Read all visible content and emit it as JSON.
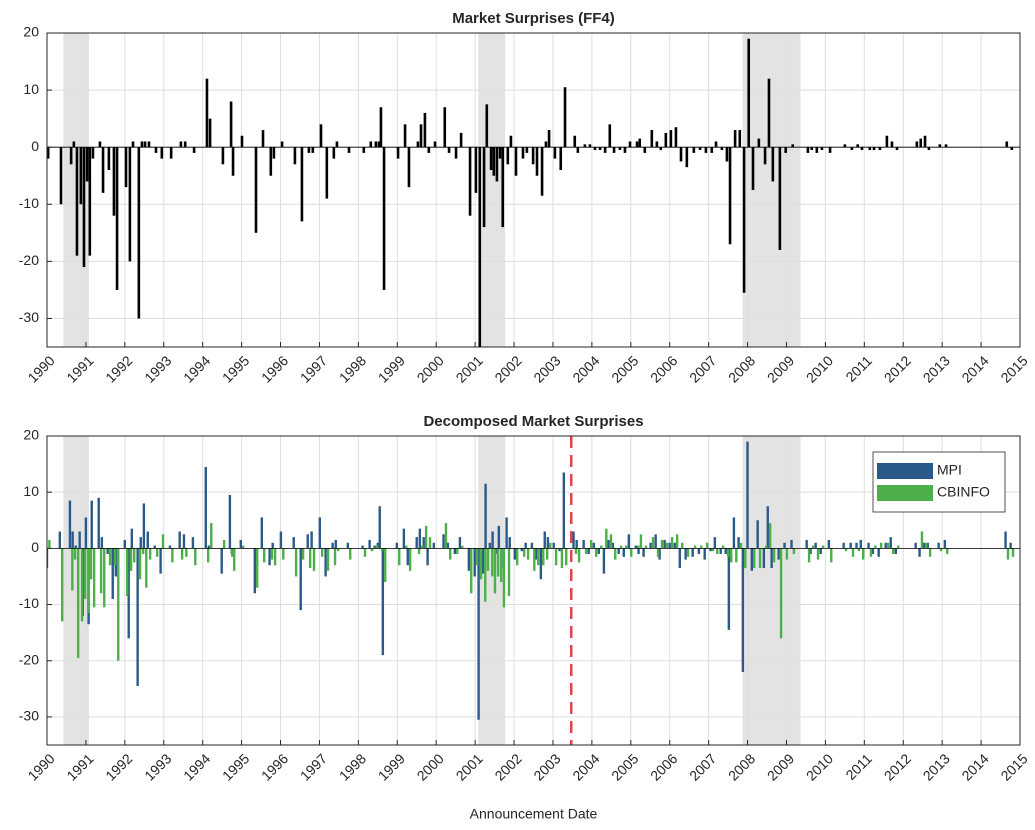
{
  "chart_data": [
    {
      "type": "bar",
      "title": "Market Surprises (FF4)",
      "color": "#000000",
      "grid": true,
      "xlim": [
        1990,
        2015
      ],
      "ylim": [
        -35,
        20
      ],
      "xticks": [
        1990,
        1991,
        1992,
        1993,
        1994,
        1995,
        1996,
        1997,
        1998,
        1999,
        2000,
        2001,
        2002,
        2003,
        2004,
        2005,
        2006,
        2007,
        2008,
        2009,
        2010,
        2011,
        2012,
        2013,
        2014,
        2015
      ],
      "yticks": [
        -30,
        -20,
        -10,
        0,
        10,
        20
      ],
      "shaded_regions": [
        [
          1990.42,
          1991.08
        ],
        [
          2001.08,
          2001.77
        ],
        [
          2007.87,
          2009.36
        ]
      ],
      "shade_color": "#e3e3e3",
      "x": [
        1990.03,
        1990.36,
        1990.62,
        1990.69,
        1990.77,
        1990.87,
        1990.95,
        1991.03,
        1991.1,
        1991.18,
        1991.36,
        1991.44,
        1991.59,
        1991.72,
        1991.8,
        1992.03,
        1992.13,
        1992.21,
        1992.36,
        1992.44,
        1992.52,
        1992.62,
        1992.8,
        1992.95,
        1993.19,
        1993.44,
        1993.55,
        1993.78,
        1994.11,
        1994.19,
        1994.52,
        1994.73,
        1994.78,
        1995.01,
        1995.37,
        1995.55,
        1995.75,
        1995.83,
        1996.04,
        1996.37,
        1996.55,
        1996.73,
        1996.83,
        1997.04,
        1997.19,
        1997.37,
        1997.45,
        1997.76,
        1998.14,
        1998.32,
        1998.45,
        1998.53,
        1998.58,
        1998.66,
        1999.02,
        1999.2,
        1999.3,
        1999.53,
        1999.61,
        1999.71,
        1999.81,
        1999.97,
        2000.22,
        2000.33,
        2000.51,
        2000.64,
        2000.87,
        2001.02,
        2001.12,
        2001.23,
        2001.3,
        2001.41,
        2001.48,
        2001.56,
        2001.64,
        2001.71,
        2001.84,
        2001.92,
        2002.05,
        2002.23,
        2002.33,
        2002.49,
        2002.59,
        2002.72,
        2002.82,
        2002.9,
        2003.05,
        2003.2,
        2003.31,
        2003.56,
        2003.64,
        2003.82,
        2003.95,
        2004.08,
        2004.21,
        2004.34,
        2004.46,
        2004.57,
        2004.72,
        2004.85,
        2004.98,
        2005.16,
        2005.23,
        2005.36,
        2005.54,
        2005.67,
        2005.77,
        2005.9,
        2006.03,
        2006.16,
        2006.29,
        2006.44,
        2006.62,
        2006.78,
        2006.93,
        2007.08,
        2007.19,
        2007.34,
        2007.47,
        2007.55,
        2007.68,
        2007.8,
        2007.91,
        2008.03,
        2008.14,
        2008.29,
        2008.45,
        2008.55,
        2008.65,
        2008.83,
        2008.98,
        2009.16,
        2009.55,
        2009.65,
        2009.78,
        2009.91,
        2010.12,
        2010.5,
        2010.68,
        2010.83,
        2010.94,
        2011.14,
        2011.25,
        2011.4,
        2011.58,
        2011.71,
        2011.84,
        2012.35,
        2012.45,
        2012.56,
        2012.66,
        2012.94,
        2013.1,
        2014.66,
        2014.79
      ],
      "values": [
        -2,
        -10,
        -3,
        1,
        -19,
        -10,
        -21,
        -6,
        -19,
        -2,
        1,
        -8,
        -4,
        -12,
        -25,
        -7,
        -20,
        1,
        -30,
        1,
        1,
        1,
        -1,
        -2,
        -2,
        1,
        1,
        -1,
        12,
        5,
        -3,
        8,
        -5,
        2,
        -15,
        3,
        -5,
        -2,
        1,
        -3,
        -13,
        -1,
        -1,
        4,
        -9,
        -2,
        1,
        -1,
        -1,
        1,
        1,
        1,
        7,
        -25,
        -2,
        4,
        -7,
        1,
        4,
        6,
        -1,
        1,
        7,
        -1,
        -2,
        2.5,
        -12,
        -8,
        -36,
        -14,
        7.5,
        -4,
        -5,
        -6,
        -2,
        -14,
        -3,
        2,
        -5,
        -2,
        -1,
        -3,
        -5,
        -8.5,
        1,
        3,
        -2,
        -4,
        10.5,
        2,
        -1,
        0.5,
        0.5,
        -0.5,
        -0.5,
        -1,
        4,
        -1,
        -0.5,
        -1,
        1,
        1,
        1.5,
        -1,
        3,
        1,
        -0.5,
        2.5,
        3,
        3.5,
        -2.5,
        -3.5,
        -1,
        -0.5,
        -1,
        -1,
        1,
        -0.5,
        -2.5,
        -17,
        3,
        3,
        -25.5,
        19,
        -7.5,
        1.5,
        -3,
        12,
        -6,
        -18,
        -1,
        0.5,
        -1,
        -0.5,
        -1,
        -0.5,
        -1,
        0.5,
        -0.5,
        0.5,
        -0.5,
        -0.5,
        -0.5,
        -0.5,
        2,
        1,
        -0.5,
        1,
        1.5,
        2,
        -0.5,
        0.5,
        0.5,
        1,
        -0.5
      ]
    },
    {
      "type": "grouped_bar",
      "title": "Decomposed Market Surprises",
      "xlabel": "Announcement Date",
      "grid": true,
      "xlim": [
        1990,
        2015
      ],
      "ylim": [
        -35,
        20
      ],
      "xticks": [
        1990,
        1991,
        1992,
        1993,
        1994,
        1995,
        1996,
        1997,
        1998,
        1999,
        2000,
        2001,
        2002,
        2003,
        2004,
        2005,
        2006,
        2007,
        2008,
        2009,
        2010,
        2011,
        2012,
        2013,
        2014,
        2015
      ],
      "yticks": [
        -30,
        -20,
        -10,
        0,
        10,
        20
      ],
      "shaded_regions": [
        [
          1990.42,
          1991.08
        ],
        [
          2001.08,
          2001.77
        ],
        [
          2007.87,
          2009.36
        ]
      ],
      "shade_color": "#e3e3e3",
      "vline": 2003.47,
      "vline_color": "#e0474c",
      "legend": "upper right",
      "x": [
        1990.03,
        1990.36,
        1990.62,
        1990.69,
        1990.77,
        1990.87,
        1990.95,
        1991.03,
        1991.1,
        1991.18,
        1991.36,
        1991.44,
        1991.59,
        1991.72,
        1991.8,
        1992.03,
        1992.13,
        1992.21,
        1992.36,
        1992.44,
        1992.52,
        1992.62,
        1992.8,
        1992.95,
        1993.19,
        1993.44,
        1993.55,
        1993.78,
        1994.11,
        1994.19,
        1994.52,
        1994.73,
        1994.78,
        1995.01,
        1995.37,
        1995.55,
        1995.75,
        1995.83,
        1996.04,
        1996.37,
        1996.55,
        1996.73,
        1996.83,
        1997.04,
        1997.19,
        1997.37,
        1997.45,
        1997.76,
        1998.14,
        1998.32,
        1998.45,
        1998.53,
        1998.58,
        1998.66,
        1999.02,
        1999.2,
        1999.3,
        1999.53,
        1999.61,
        1999.71,
        1999.81,
        1999.97,
        2000.22,
        2000.33,
        2000.51,
        2000.64,
        2000.87,
        2001.02,
        2001.12,
        2001.23,
        2001.3,
        2001.41,
        2001.48,
        2001.56,
        2001.64,
        2001.71,
        2001.84,
        2001.92,
        2002.05,
        2002.23,
        2002.33,
        2002.49,
        2002.59,
        2002.72,
        2002.82,
        2002.9,
        2003.05,
        2003.2,
        2003.31,
        2003.56,
        2003.64,
        2003.82,
        2003.95,
        2004.08,
        2004.21,
        2004.34,
        2004.46,
        2004.57,
        2004.72,
        2004.85,
        2004.98,
        2005.16,
        2005.23,
        2005.36,
        2005.54,
        2005.67,
        2005.77,
        2005.9,
        2006.03,
        2006.16,
        2006.29,
        2006.44,
        2006.62,
        2006.78,
        2006.93,
        2007.08,
        2007.19,
        2007.34,
        2007.47,
        2007.55,
        2007.68,
        2007.8,
        2007.91,
        2008.03,
        2008.14,
        2008.29,
        2008.45,
        2008.55,
        2008.65,
        2008.83,
        2008.98,
        2009.16,
        2009.55,
        2009.65,
        2009.78,
        2009.91,
        2010.12,
        2010.5,
        2010.68,
        2010.83,
        2010.94,
        2011.14,
        2011.25,
        2011.4,
        2011.58,
        2011.71,
        2011.84,
        2012.35,
        2012.45,
        2012.56,
        2012.66,
        2012.94,
        2013.1,
        2014.66,
        2014.79
      ],
      "series": [
        {
          "name": "MPI",
          "color": "#2b5a8a",
          "values": [
            -3.5,
            3,
            8.5,
            3,
            0.5,
            3,
            -12,
            5.5,
            -13.5,
            8.5,
            9,
            2,
            -1,
            -9,
            -5,
            1.5,
            -16,
            3.5,
            -24.5,
            2,
            8,
            3,
            0.5,
            -4.5,
            0.5,
            3,
            2.5,
            2,
            14.5,
            0.5,
            -4.5,
            9.5,
            -1,
            1.5,
            -8,
            5.5,
            -3,
            1,
            3,
            2,
            -11,
            2.5,
            3,
            5.5,
            -5,
            1,
            1.5,
            1,
            0.5,
            1.5,
            0.5,
            1,
            7.5,
            -19,
            1,
            3.5,
            -3,
            2,
            3.5,
            2,
            -3,
            1,
            2.5,
            1,
            -1,
            2,
            -4,
            -5,
            -30.5,
            -4.5,
            11.5,
            1,
            3,
            -1,
            4,
            -3.5,
            5.5,
            2,
            -2,
            -0.5,
            1,
            1,
            -2,
            -5.5,
            3,
            2,
            1,
            -0.5,
            13.5,
            3,
            1.5,
            1.5,
            -1,
            1,
            -1,
            -4.5,
            1.5,
            1,
            -1,
            -1.5,
            2.5,
            0.5,
            -1,
            -1.5,
            1,
            2.5,
            -2,
            1.5,
            1,
            1,
            -3.5,
            -2,
            -1.5,
            -1,
            -2,
            -0.5,
            2,
            -1,
            -1,
            -14.5,
            5.5,
            2,
            -22,
            19,
            -4,
            5,
            -3.5,
            7.5,
            -3.5,
            -2,
            1,
            1.5,
            1.5,
            -1,
            1,
            -1,
            1.5,
            1,
            1,
            1,
            1.5,
            1,
            -1,
            -1.5,
            1,
            2,
            -1,
            1,
            -1.5,
            1,
            1,
            1,
            1.5,
            3,
            1
          ]
        },
        {
          "name": "CBINFO",
          "color": "#4daf4a",
          "values": [
            1.5,
            -13,
            -7.5,
            -2,
            -19.5,
            -13,
            -9,
            -11.5,
            -5.5,
            -10.5,
            -8,
            -10.5,
            -3,
            -3,
            -20,
            -8.5,
            -4,
            -2.5,
            -5.5,
            -1,
            -7,
            -2,
            -1.5,
            2.5,
            -2.5,
            -2,
            -1.5,
            -3,
            -2.5,
            4.5,
            1.5,
            -1.5,
            -4,
            0.5,
            -7,
            -2.5,
            -2,
            -3,
            -2,
            -5,
            -2,
            -3.5,
            -4,
            -1.5,
            -4,
            -3,
            -0.5,
            -2,
            -1.5,
            -0.5,
            0.5,
            0,
            -0.5,
            -6,
            -3,
            0.5,
            -4,
            -1,
            0.5,
            4,
            2,
            0,
            4.5,
            -2,
            -1,
            0.5,
            -8,
            -3,
            -5.5,
            -9.5,
            -4,
            -5,
            -8,
            -5,
            -6,
            -10.5,
            -8.5,
            0,
            -3,
            -1.5,
            -2,
            -4,
            -3,
            -3,
            -2,
            1,
            -3,
            -3.5,
            -3,
            -1,
            -2.5,
            -1,
            1.5,
            -1.5,
            0.5,
            3.5,
            2.5,
            -2,
            0.5,
            0.5,
            -1.5,
            0.5,
            2.5,
            0.5,
            2,
            -1.5,
            1.5,
            1,
            2,
            2.5,
            1,
            -1.5,
            0.5,
            0.5,
            1,
            -0.5,
            -1,
            0.5,
            -1.5,
            -2.5,
            -2.5,
            1,
            -3.5,
            0,
            -3.5,
            -3.5,
            0.5,
            4.5,
            -2.5,
            -16,
            -2,
            -1,
            -2.5,
            0.5,
            -2,
            0.5,
            -2.5,
            -0.5,
            -1.5,
            -0.5,
            -2,
            -1.5,
            0.5,
            1,
            1,
            -1,
            0.5,
            0,
            3,
            1,
            -1.5,
            -0.5,
            -1,
            -2,
            -1.5
          ]
        }
      ]
    }
  ]
}
